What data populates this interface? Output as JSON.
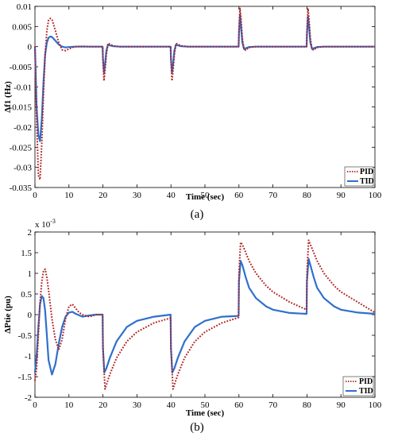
{
  "colors": {
    "pid": "#b22222",
    "tid": "#2f6fce"
  },
  "chart_data": [
    {
      "type": "line",
      "caption": "(a)",
      "xlabel": "Time (sec)",
      "ylabel": "Δf1 (Hz)",
      "xlim": [
        0,
        100
      ],
      "ylim": [
        -0.035,
        0.01
      ],
      "xticks": [
        0,
        10,
        20,
        30,
        40,
        50,
        60,
        70,
        80,
        90,
        100
      ],
      "yticks": [
        0.01,
        0.005,
        0,
        -0.005,
        -0.01,
        -0.015,
        -0.02,
        -0.025,
        -0.03,
        -0.035
      ],
      "ytick_labels": [
        "0.01",
        "0.005",
        "0",
        "-0.005",
        "-0.01",
        "-0.015",
        "-0.02",
        "-0.025",
        "-0.03",
        "-0.035"
      ],
      "legend": "bottom-right",
      "series": [
        {
          "name": "PID",
          "style": "dotted",
          "color": "#b22222",
          "x": [
            0,
            0.5,
            1,
            1.5,
            2,
            2.5,
            3,
            3.5,
            4,
            4.5,
            5,
            6,
            7,
            8,
            9,
            10,
            11,
            12,
            14,
            16,
            18,
            19.9,
            20,
            20.3,
            20.6,
            21,
            21.5,
            22,
            23,
            25,
            30,
            39.9,
            40,
            40.3,
            40.6,
            41,
            41.5,
            42,
            43,
            45,
            50,
            59.9,
            60,
            60.3,
            60.6,
            61,
            61.5,
            62,
            62.5,
            63,
            65,
            70,
            79.9,
            80,
            80.3,
            80.6,
            81,
            81.5,
            82,
            82.5,
            83,
            85,
            90,
            100
          ],
          "y": [
            0,
            -0.018,
            -0.032,
            -0.033,
            -0.024,
            -0.012,
            -0.002,
            0.004,
            0.0065,
            0.007,
            0.0068,
            0.004,
            0.001,
            -0.0008,
            -0.001,
            -0.0006,
            -0.0002,
            0,
            0.0001,
            0,
            0,
            0,
            -0.003,
            -0.0085,
            -0.006,
            -0.002,
            0.0008,
            0.0006,
            0.0002,
            0,
            0,
            0,
            -0.003,
            -0.0085,
            -0.006,
            -0.002,
            0.0008,
            0.0006,
            0.0002,
            0,
            0,
            0,
            0.004,
            0.0095,
            0.007,
            0.002,
            -0.0005,
            -0.0009,
            -0.0005,
            -0.0002,
            0,
            0,
            0,
            0.004,
            0.0095,
            0.007,
            0.002,
            -0.0005,
            -0.0009,
            -0.0005,
            -0.0002,
            0,
            0,
            0
          ]
        },
        {
          "name": "TID",
          "style": "solid",
          "color": "#2f6fce",
          "x": [
            0,
            0.5,
            1,
            1.5,
            2,
            2.5,
            3,
            3.5,
            4,
            4.5,
            5,
            6,
            7,
            8,
            9,
            10,
            12,
            14,
            16,
            18,
            19.9,
            20,
            20.3,
            20.6,
            21,
            21.5,
            22,
            23,
            25,
            30,
            39.9,
            40,
            40.3,
            40.6,
            41,
            41.5,
            42,
            43,
            45,
            50,
            59.9,
            60,
            60.3,
            60.6,
            61,
            61.5,
            62,
            63,
            65,
            70,
            79.9,
            80,
            80.3,
            80.6,
            81,
            81.5,
            82,
            83,
            85,
            90,
            100
          ],
          "y": [
            0,
            -0.015,
            -0.022,
            -0.0235,
            -0.018,
            -0.009,
            -0.002,
            0.001,
            0.0022,
            0.0025,
            0.0024,
            0.0015,
            0.0005,
            0,
            -0.0002,
            -0.0001,
            0,
            0,
            0,
            0,
            0,
            -0.003,
            -0.0065,
            -0.0045,
            -0.001,
            0.0005,
            0.0003,
            0.0001,
            0,
            0,
            0,
            -0.003,
            -0.0065,
            -0.0045,
            -0.001,
            0.0005,
            0.0003,
            0.0001,
            0,
            0,
            0,
            0.003,
            0.008,
            0.005,
            0.001,
            -0.0006,
            -0.0004,
            -0.0001,
            0,
            0,
            0,
            0.003,
            0.0075,
            0.005,
            0.001,
            -0.0006,
            -0.0004,
            -0.0001,
            0,
            0,
            0
          ]
        }
      ]
    },
    {
      "type": "line",
      "caption": "(b)",
      "xlabel": "Time (sec)",
      "ylabel": "ΔPtie (pu)",
      "exponent_label": "x 10",
      "exponent": "-3",
      "xlim": [
        0,
        100
      ],
      "ylim": [
        -2,
        2
      ],
      "xticks": [
        0,
        10,
        20,
        30,
        40,
        50,
        60,
        70,
        80,
        90,
        100
      ],
      "yticks": [
        2,
        1.5,
        1,
        0.5,
        0,
        -0.5,
        -1,
        -1.5,
        -2
      ],
      "ytick_labels": [
        "2",
        "1.5",
        "1",
        "0.5",
        "0",
        "-0.5",
        "-1",
        "-1.5",
        "-2"
      ],
      "legend": "bottom-right",
      "series": [
        {
          "name": "PID",
          "style": "dotted",
          "color": "#b22222",
          "x": [
            0,
            0.5,
            1,
            1.5,
            2,
            2.5,
            3,
            3.5,
            4,
            5,
            6,
            7,
            8,
            9,
            10,
            11,
            12,
            13,
            14,
            16,
            18,
            19.9,
            20,
            20.6,
            21,
            22,
            24,
            27,
            30,
            35,
            39.9,
            40,
            40.6,
            41,
            42,
            44,
            47,
            50,
            55,
            59.9,
            60,
            60.5,
            61,
            62,
            63,
            65,
            68,
            70,
            75,
            79.9,
            80,
            80.5,
            81,
            82,
            83,
            85,
            88,
            90,
            95,
            100
          ],
          "y": [
            -1.6,
            -1.3,
            -0.5,
            0.3,
            0.8,
            1.05,
            1.1,
            0.9,
            0.6,
            -0.1,
            -0.6,
            -0.85,
            -0.6,
            -0.1,
            0.2,
            0.25,
            0.15,
            0.05,
            0,
            -0.05,
            0,
            0,
            -0.8,
            -1.8,
            -1.7,
            -1.45,
            -1.05,
            -0.65,
            -0.42,
            -0.2,
            -0.08,
            -0.8,
            -1.8,
            -1.7,
            -1.45,
            -1.05,
            -0.65,
            -0.42,
            -0.2,
            -0.07,
            1.0,
            1.75,
            1.7,
            1.5,
            1.3,
            1.0,
            0.7,
            0.55,
            0.3,
            0.12,
            1.0,
            1.8,
            1.7,
            1.5,
            1.3,
            1.0,
            0.7,
            0.55,
            0.3,
            0.05
          ]
        },
        {
          "name": "TID",
          "style": "solid",
          "color": "#2f6fce",
          "x": [
            0,
            0.5,
            1,
            1.5,
            2,
            2.5,
            3,
            3.5,
            4,
            5,
            6,
            7,
            8,
            9,
            10,
            11,
            12,
            14,
            16,
            18,
            19.9,
            20,
            20.4,
            21,
            22,
            24,
            27,
            30,
            35,
            39.9,
            40,
            40.4,
            41,
            42,
            44,
            47,
            50,
            55,
            59.9,
            60,
            60.5,
            61,
            62,
            63,
            65,
            68,
            70,
            75,
            79.9,
            80,
            80.5,
            81,
            82,
            83,
            85,
            88,
            90,
            95,
            100
          ],
          "y": [
            -1.4,
            -1.0,
            -0.3,
            0.25,
            0.45,
            0.4,
            0.1,
            -0.5,
            -1.1,
            -1.45,
            -1.2,
            -0.7,
            -0.3,
            -0.05,
            0.05,
            0.07,
            0.02,
            -0.05,
            -0.02,
            0,
            0,
            -0.8,
            -1.4,
            -1.3,
            -1.05,
            -0.65,
            -0.3,
            -0.15,
            -0.05,
            0,
            -0.8,
            -1.4,
            -1.3,
            -1.05,
            -0.65,
            -0.3,
            -0.15,
            -0.05,
            -0.03,
            0.8,
            1.3,
            1.2,
            0.9,
            0.65,
            0.4,
            0.2,
            0.12,
            0.04,
            0.02,
            0.8,
            1.35,
            1.2,
            0.9,
            0.65,
            0.4,
            0.2,
            0.12,
            0.05,
            0.02
          ]
        }
      ]
    }
  ]
}
